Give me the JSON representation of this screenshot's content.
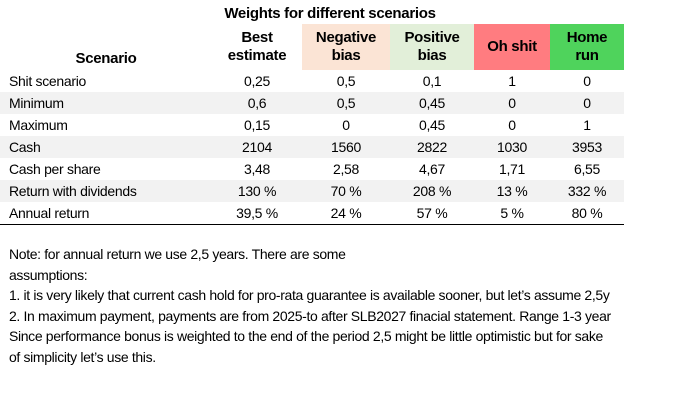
{
  "title": "Weights for different scenarios",
  "header": {
    "scenario": "Scenario",
    "columns": [
      {
        "line1": "Best",
        "line2": "estimate",
        "color": "#ffffff"
      },
      {
        "line1": "Negative",
        "line2": "bias",
        "color": "#fbe4d5"
      },
      {
        "line1": "Positive",
        "line2": "bias",
        "color": "#e2efd9"
      },
      {
        "line1": "Oh shit",
        "line2": "",
        "color": "#ff7c80"
      },
      {
        "line1": "Home",
        "line2": "run",
        "color": "#4fd35c"
      }
    ]
  },
  "rows": [
    {
      "label": "Shit scenario",
      "values": [
        "0,25",
        "0,5",
        "0,1",
        "1",
        "0"
      ]
    },
    {
      "label": "Minimum",
      "values": [
        "0,6",
        "0,5",
        "0,45",
        "0",
        "0"
      ]
    },
    {
      "label": "Maximum",
      "values": [
        "0,15",
        "0",
        "0,45",
        "0",
        "1"
      ]
    },
    {
      "label": "Cash",
      "values": [
        "2104",
        "1560",
        "2822",
        "1030",
        "3953"
      ]
    },
    {
      "label": "Cash per share",
      "values": [
        "3,48",
        "2,58",
        "4,67",
        "1,71",
        "6,55"
      ]
    },
    {
      "label": "Return with dividends",
      "values": [
        "130 %",
        "70 %",
        "208 %",
        "13 %",
        "332 %"
      ]
    },
    {
      "label": "Annual return",
      "values": [
        "39,5 %",
        "24 %",
        "57 %",
        "5 %",
        "80 %"
      ]
    }
  ],
  "notes": [
    "Note: for annual return we use 2,5 years. There are some",
    "assumptions:",
    "1. it is very likely that current cash hold for pro-rata guarantee is available sooner, but let’s assume 2,5y",
    "2. In maximum payment, payments are from 2025-to after SLB2027 finacial statement. Range 1-3 year",
    "Since performance bonus is weighted to the end of the period 2,5 might be little optimistic but for sake",
    "of simplicity let’s use this."
  ]
}
